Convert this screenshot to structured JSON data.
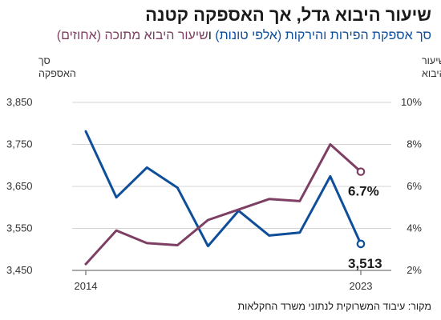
{
  "title": "שיעור היבוא גדל, אך האספקה קטנה",
  "subtitle": {
    "part_a": "סך אספקת הפירות והירקות (אלפי טונות)",
    "connector": " ו",
    "part_b": "שיעור היבוא מתוכה (אחוזים)"
  },
  "source": "מקור: עיבוד המשרוקית לנתוני משרד החקלאות",
  "colors": {
    "supply": "#0f4f9a",
    "import_rate": "#7d3f63"
  },
  "chart_data": {
    "type": "line",
    "x": [
      2014,
      2015,
      2016,
      2017,
      2018,
      2019,
      2020,
      2021,
      2022,
      2023
    ],
    "x_tick_labels": [
      "2014",
      "2023"
    ],
    "left_axis": {
      "label_lines": [
        "סך",
        "האספקה"
      ],
      "ylim": [
        3450,
        3850
      ],
      "ticks": [
        3450,
        3550,
        3650,
        3750,
        3850
      ],
      "tick_labels": [
        "3,450",
        "3,550",
        "3,650",
        "3,750",
        "3,850"
      ]
    },
    "right_axis": {
      "label_lines": [
        "שיעור",
        "היבוא"
      ],
      "ylim": [
        2,
        10
      ],
      "ticks": [
        2,
        4,
        6,
        8,
        10
      ],
      "tick_labels": [
        "2%",
        "4%",
        "6%",
        "8%",
        "10%"
      ]
    },
    "series": [
      {
        "key": "supply",
        "axis": "left",
        "values": [
          3781,
          3624,
          3695,
          3647,
          3508,
          3592,
          3533,
          3540,
          3674,
          3513
        ],
        "end_label": "3,513"
      },
      {
        "key": "import_rate",
        "axis": "right",
        "values": [
          2.3,
          3.9,
          3.3,
          3.2,
          4.4,
          4.9,
          5.4,
          5.3,
          8.0,
          6.7
        ],
        "end_label": "6.7%"
      }
    ]
  }
}
